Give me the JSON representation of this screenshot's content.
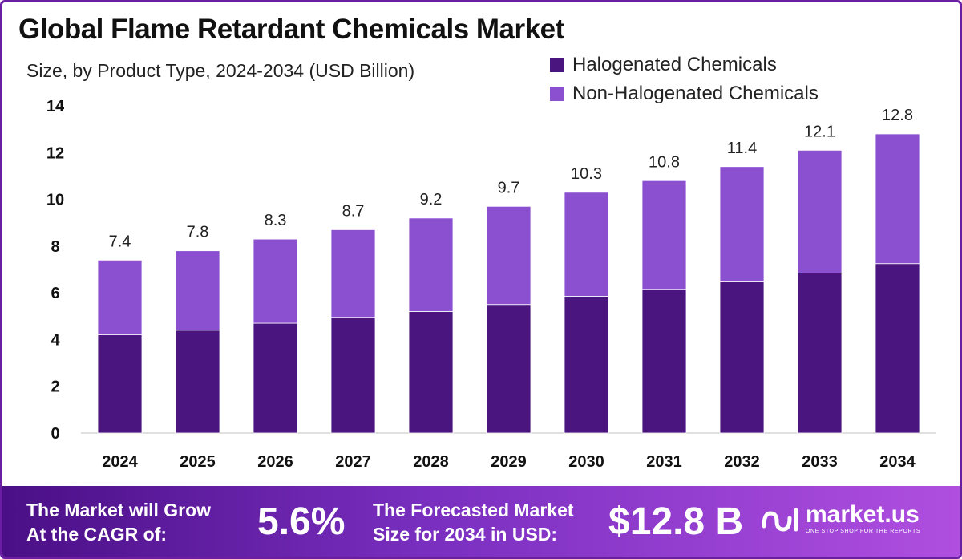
{
  "header": {
    "title": "Global Flame Retardant Chemicals Market",
    "subtitle": "Size, by Product Type, 2024-2034 (USD Billion)"
  },
  "colors": {
    "halogenated": "#4b1580",
    "non_halogenated": "#8a50d0",
    "footer_start": "#4a0f86",
    "footer_end": "#b04fe0"
  },
  "chart_data": {
    "type": "bar",
    "stacked": true,
    "title": "Global Flame Retardant Chemicals Market",
    "subtitle": "Size, by Product Type, 2024-2034 (USD Billion)",
    "categories": [
      "2024",
      "2025",
      "2026",
      "2027",
      "2028",
      "2029",
      "2030",
      "2031",
      "2032",
      "2033",
      "2034"
    ],
    "series": [
      {
        "name": "Halogenated Chemicals",
        "values": [
          4.2,
          4.4,
          4.7,
          4.95,
          5.2,
          5.5,
          5.85,
          6.15,
          6.5,
          6.85,
          7.25
        ]
      },
      {
        "name": "Non-Halogenated Chemicals",
        "values": [
          3.2,
          3.4,
          3.6,
          3.75,
          4.0,
          4.2,
          4.45,
          4.65,
          4.9,
          5.25,
          5.55
        ]
      }
    ],
    "totals": [
      7.4,
      7.8,
      8.3,
      8.7,
      9.2,
      9.7,
      10.3,
      10.8,
      11.4,
      12.1,
      12.8
    ],
    "total_labels": [
      "7.4",
      "7.8",
      "8.3",
      "8.7",
      "9.2",
      "9.7",
      "10.3",
      "10.8",
      "11.4",
      "12.1",
      "12.8"
    ],
    "yticks": [
      "0",
      "2",
      "4",
      "6",
      "8",
      "10",
      "12",
      "14"
    ],
    "ylim": [
      0,
      14
    ],
    "xlabel": "",
    "ylabel": "",
    "legend_position": "top-right"
  },
  "footer": {
    "cagr_label_line1": "The Market will Grow",
    "cagr_label_line2": "At the CAGR of:",
    "cagr_value": "5.6%",
    "forecast_label_line1": "The Forecasted Market",
    "forecast_label_line2": "Size for 2034 in USD:",
    "forecast_value": "$12.8 B",
    "brand_name": "market.us",
    "brand_tagline": "ONE STOP SHOP FOR THE REPORTS"
  }
}
